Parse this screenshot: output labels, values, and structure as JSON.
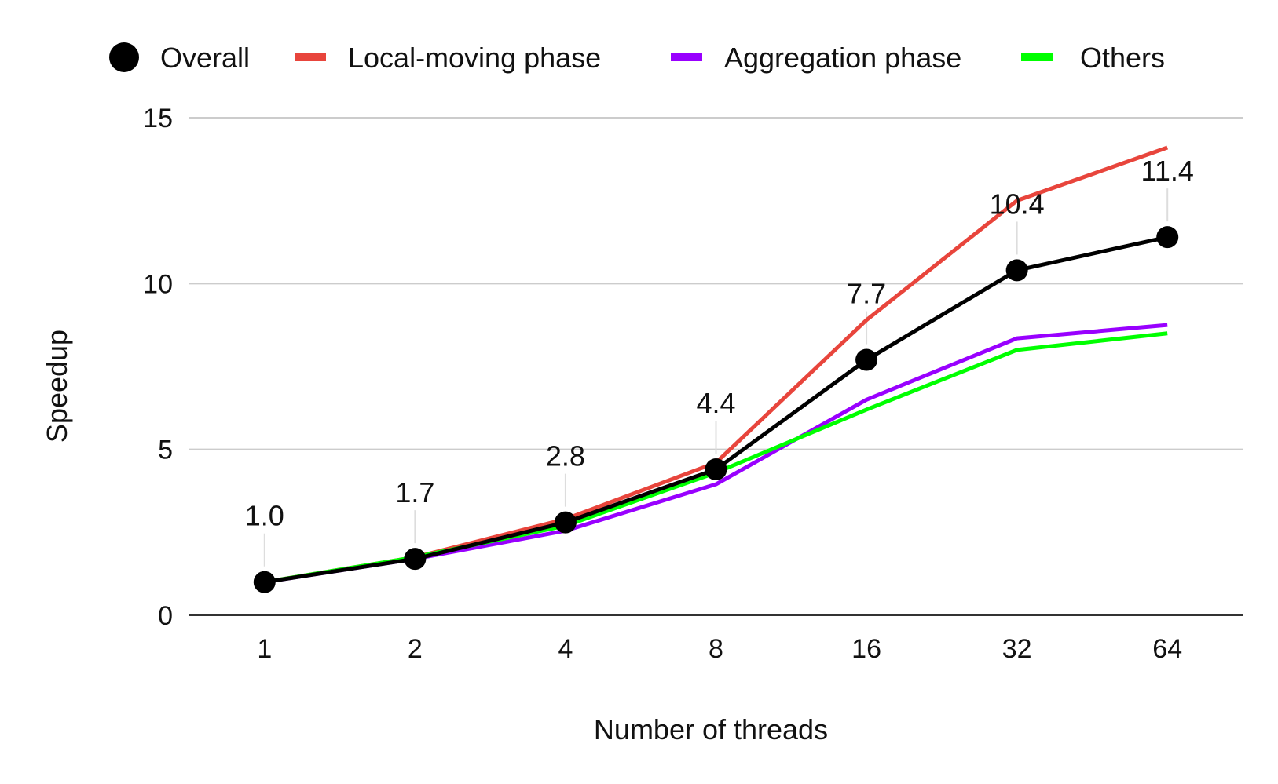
{
  "chart_data": {
    "type": "line",
    "xlabel": "Number of threads",
    "ylabel": "Speedup",
    "categories": [
      "1",
      "2",
      "4",
      "8",
      "16",
      "32",
      "64"
    ],
    "ylim": [
      0,
      15
    ],
    "yticks": [
      "0",
      "5",
      "10",
      "15"
    ],
    "grid": true,
    "legend_position": "top",
    "series": [
      {
        "name": "Overall",
        "color": "#000000",
        "marker": "circle",
        "values": [
          1.0,
          1.7,
          2.8,
          4.4,
          7.7,
          10.4,
          11.4
        ],
        "labels": [
          "1.0",
          "1.7",
          "2.8",
          "4.4",
          "7.7",
          "10.4",
          "11.4"
        ]
      },
      {
        "name": "Local-moving phase",
        "color": "#e8453c",
        "values": [
          1.0,
          1.75,
          2.9,
          4.6,
          8.9,
          12.5,
          14.1
        ]
      },
      {
        "name": "Aggregation phase",
        "color": "#9900ff",
        "values": [
          1.0,
          1.7,
          2.55,
          3.95,
          6.5,
          8.35,
          8.75
        ]
      },
      {
        "name": "Others",
        "color": "#00ff00",
        "values": [
          1.0,
          1.75,
          2.7,
          4.3,
          6.2,
          8.0,
          8.5
        ]
      }
    ]
  }
}
